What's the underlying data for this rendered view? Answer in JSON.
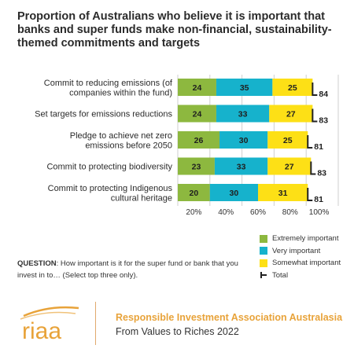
{
  "title": "Proportion of Australians who believe it is important that banks and super funds make non-financial, sustainability-themed commitments and targets",
  "chart_data": {
    "type": "bar",
    "stacked": true,
    "orientation": "horizontal",
    "categories": [
      [
        "Commit to reducing emissions (of",
        "companies within the fund)"
      ],
      [
        "Set targets for emissions reductions"
      ],
      [
        "Pledge to achieve net zero",
        "emissions before 2050"
      ],
      [
        "Commit to protecting biodiversity"
      ],
      [
        "Commit to protecting Indigenous",
        "cultural heritage"
      ]
    ],
    "series": [
      {
        "name": "Extremely important",
        "color": "#8db83f",
        "values": [
          24,
          24,
          26,
          23,
          20
        ]
      },
      {
        "name": "Very important",
        "color": "#16b2cc",
        "values": [
          35,
          33,
          30,
          33,
          30
        ]
      },
      {
        "name": "Somewhat important",
        "color": "#fde016",
        "values": [
          25,
          27,
          25,
          27,
          31
        ]
      }
    ],
    "totals": {
      "name": "Total",
      "values": [
        84,
        83,
        81,
        83,
        81
      ]
    },
    "x_ticks": [
      "20%",
      "40%",
      "60%",
      "80%",
      "100%"
    ],
    "xlim": [
      0,
      100
    ],
    "grid": "vertical",
    "legend_position": "bottom-right"
  },
  "question": {
    "label": "QUESTION",
    "text": ": How important is it for the super fund or bank that you invest in to… (Select top three only)."
  },
  "footer": {
    "logo_text": "riaa",
    "org_name": "Responsible Investment Association Australasia",
    "report_name": "From Values to Riches 2022"
  }
}
